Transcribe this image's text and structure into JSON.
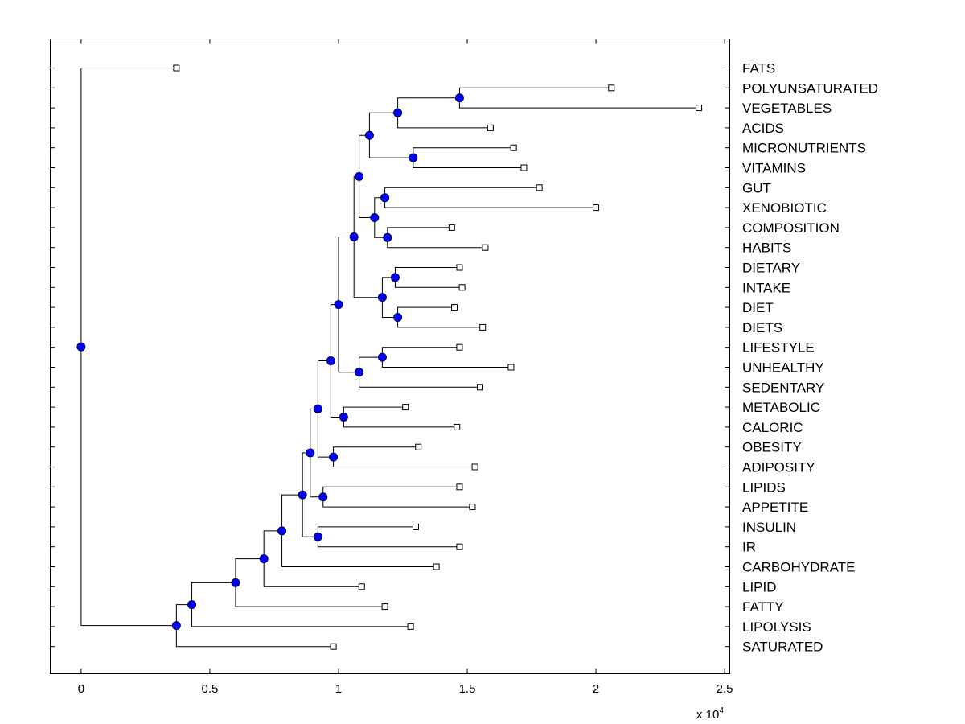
{
  "chart_data": {
    "type": "dendrogram",
    "orientation": "horizontal",
    "xlim": [
      -0.12,
      2.52
    ],
    "xticks": [
      0,
      0.5,
      1,
      1.5,
      2,
      2.5
    ],
    "xtick_labels": [
      "0",
      "0.5",
      "1",
      "1.5",
      "2",
      "2.5"
    ],
    "x_multiplier": "x 10",
    "x_multiplier_exp": "4",
    "leaves": [
      "FATS",
      "POLYUNSATURATED",
      "VEGETABLES",
      "ACIDS",
      "MICRONUTRIENTS",
      "VITAMINS",
      "GUT",
      "XENOBIOTIC",
      "COMPOSITION",
      "HABITS",
      "DIETARY",
      "INTAKE",
      "DIET",
      "DIETS",
      "LIFESTYLE",
      "UNHEALTHY",
      "SEDENTARY",
      "METABOLIC",
      "CALORIC",
      "OBESITY",
      "ADIPOSITY",
      "LIPIDS",
      "APPETITE",
      "INSULIN",
      "IR",
      "CARBOHYDRATE",
      "LIPID",
      "FATTY",
      "LIPOLYSIS",
      "SATURATED"
    ],
    "leaf_x": [
      0.37,
      2.06,
      2.4,
      1.59,
      1.68,
      1.72,
      1.78,
      2.0,
      1.44,
      1.57,
      1.47,
      1.48,
      1.45,
      1.56,
      1.47,
      1.67,
      1.55,
      1.26,
      1.46,
      1.31,
      1.53,
      1.47,
      1.52,
      1.3,
      1.47,
      1.38,
      1.09,
      1.18,
      1.28,
      0.98
    ],
    "nodes": [
      {
        "id": "n0",
        "x": 0.0,
        "children": [
          "L0",
          "n1"
        ]
      },
      {
        "id": "n1",
        "x": 0.37,
        "children": [
          "n2",
          "L29"
        ]
      },
      {
        "id": "n2",
        "x": 0.43,
        "children": [
          "n3",
          "L28"
        ]
      },
      {
        "id": "n3",
        "x": 0.6,
        "children": [
          "n4",
          "L27"
        ]
      },
      {
        "id": "n4",
        "x": 0.71,
        "children": [
          "n5",
          "L26"
        ]
      },
      {
        "id": "n5",
        "x": 0.78,
        "children": [
          "n6",
          "L25"
        ]
      },
      {
        "id": "n6",
        "x": 0.86,
        "children": [
          "n7",
          "n24"
        ]
      },
      {
        "id": "n7",
        "x": 0.89,
        "children": [
          "n8",
          "n23"
        ]
      },
      {
        "id": "n8",
        "x": 0.92,
        "children": [
          "n9",
          "n22"
        ]
      },
      {
        "id": "n9",
        "x": 0.97,
        "children": [
          "n10",
          "n21"
        ]
      },
      {
        "id": "n10",
        "x": 1.0,
        "children": [
          "n11",
          "n19"
        ]
      },
      {
        "id": "n11",
        "x": 1.06,
        "children": [
          "n12",
          "n16"
        ]
      },
      {
        "id": "n12",
        "x": 1.08,
        "children": [
          "n13",
          "n15"
        ]
      },
      {
        "id": "n13",
        "x": 1.12,
        "children": [
          "n14",
          "L3"
        ]
      },
      {
        "id": "n14",
        "x": 1.23,
        "children": [
          "n14a",
          "L3x"
        ]
      },
      {
        "id": "n14a",
        "x": 1.47,
        "children": [
          "L1",
          "L2"
        ]
      },
      {
        "id": "n15",
        "x": 1.29,
        "children": [
          "L4",
          "L5"
        ]
      },
      {
        "id": "n16",
        "x": 1.14,
        "children": [
          "n17",
          "n18"
        ]
      },
      {
        "id": "n17",
        "x": 1.18,
        "children": [
          "L6",
          "L7"
        ]
      },
      {
        "id": "n18",
        "x": 1.19,
        "children": [
          "L8",
          "L9"
        ]
      },
      {
        "id": "n19",
        "x": 1.17,
        "children": [
          "n20",
          "n20b"
        ]
      },
      {
        "id": "n20",
        "x": 1.22,
        "children": [
          "L10",
          "L11"
        ]
      },
      {
        "id": "n20b",
        "x": 1.23,
        "children": [
          "L12",
          "L13"
        ]
      },
      {
        "id": "n21",
        "x": 1.08,
        "children": [
          "n21a",
          "L16"
        ]
      },
      {
        "id": "n21a",
        "x": 1.17,
        "children": [
          "L14",
          "L15"
        ]
      },
      {
        "id": "n22",
        "x": 1.02,
        "children": [
          "L17",
          "L18"
        ]
      },
      {
        "id": "n23",
        "x": 0.98,
        "children": [
          "L19",
          "L20"
        ]
      },
      {
        "id": "n24",
        "x": 0.94,
        "children": [
          "L21",
          "L22"
        ]
      },
      {
        "id": "n25",
        "x": 0.92,
        "children": [
          "L23",
          "L24"
        ]
      }
    ]
  }
}
